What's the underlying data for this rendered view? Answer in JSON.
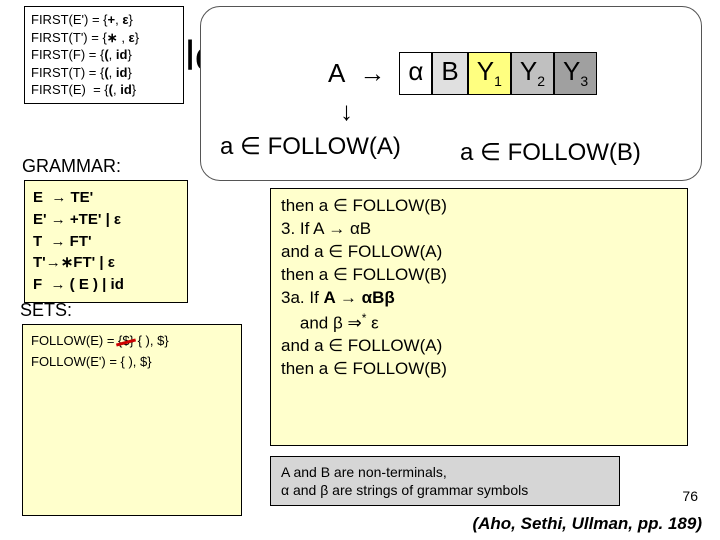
{
  "first_box": {
    "lines": [
      "FIRST(E') = {+, ε}",
      "FIRST(T') = {∗ , ε}",
      "FIRST(F) = {(, id}",
      "FIRST(T) = {(, id}",
      "FIRST(E)  = {(, id}"
    ]
  },
  "rule_fragment": "ule",
  "production": {
    "lhs": "A",
    "arrow": "→",
    "cells": [
      "α",
      "B",
      "Y",
      "Y",
      "Y"
    ],
    "subs": [
      "",
      "",
      "1",
      "2",
      "3"
    ],
    "cell_classes": [
      "c-alpha",
      "c-b",
      "c-y1",
      "c-y2",
      "c-y3"
    ]
  },
  "down_arrow": "↓",
  "followA": "a ∈ FOLLOW(A)",
  "followB": "a ∈ FOLLOW(B)",
  "grammar_label": "GRAMMAR:",
  "grammar": {
    "lines": [
      "E  → TE'",
      "E' → +TE' | ε",
      "T  → FT'",
      "T'→∗FT' | ε",
      "F  → ( E ) | id"
    ]
  },
  "sets_label": "SETS:",
  "sets": {
    "followE_prefix": "FOLLOW(E) = ",
    "followE_struck": "{$}",
    "followE_rest": " { ), $}",
    "followEprime": "FOLLOW(E') = { ), $}"
  },
  "rules": {
    "visible_lines": [
      "    then a ∈ FOLLOW(B)",
      "3. If A → αB",
      "    and a ∈ FOLLOW(A)",
      "    then a ∈ FOLLOW(B)",
      "3a. If A → αBβ",
      "    and β ⇒* ε",
      "    and a ∈ FOLLOW(A)",
      "    then a ∈ FOLLOW(B)"
    ]
  },
  "note": {
    "line1": "A and B are non-terminals,",
    "line2": "α and β are strings of grammar symbols"
  },
  "page_number": "76",
  "citation": "(Aho, Sethi, Ullman, pp. 189)",
  "colors": {
    "highlight_bg": "#ffffcc",
    "note_bg": "#d6d6d6",
    "strike": "#cc0000"
  }
}
